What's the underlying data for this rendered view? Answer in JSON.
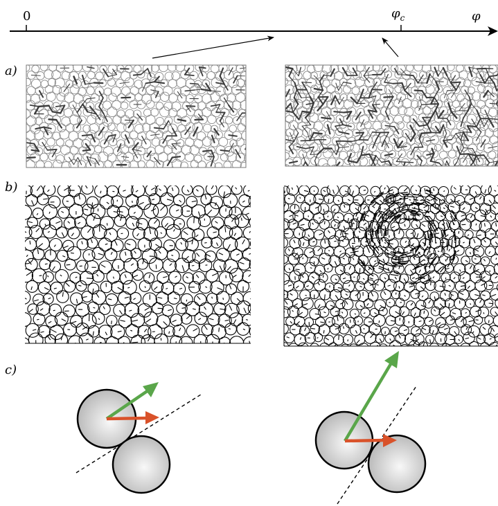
{
  "axis": {
    "origin_label": "0",
    "critical_label": "φ",
    "critical_subscript": "c",
    "variable_label": "φ"
  },
  "rows": {
    "a": {
      "label": "a)"
    },
    "b": {
      "label": "b)"
    },
    "c": {
      "label": "c)"
    }
  },
  "colors": {
    "axis": "#000000",
    "network": "#444444",
    "particle_outline": "#888888",
    "disc_outline": "#000000",
    "green_arrow": "#5aa64a",
    "red_arrow": "#d9522a",
    "sphere_light": "#f7f7f7",
    "sphere_dark": "#b8b8b8"
  },
  "icons": {
    "axis_arrowhead": "arrowhead-icon",
    "pointer_arrow": "arrow-icon"
  }
}
